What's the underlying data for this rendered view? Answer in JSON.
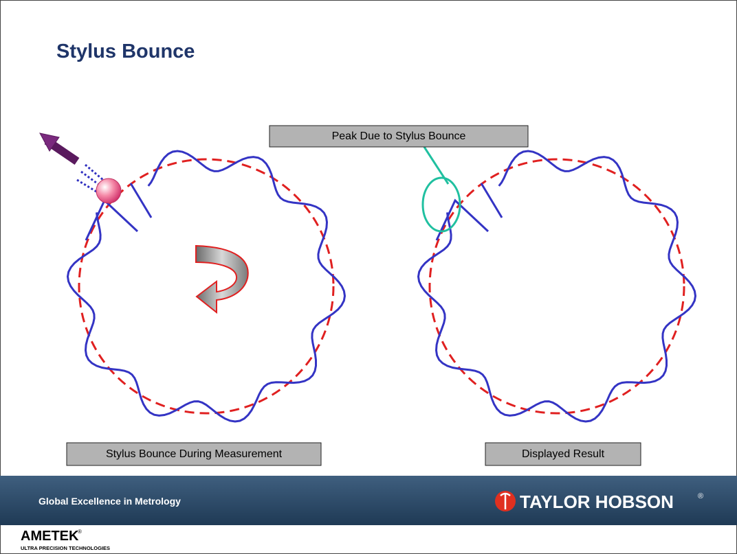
{
  "title": "Stylus Bounce",
  "callout": "Peak Due to Stylus Bounce",
  "captions": [
    "Stylus Bounce During Measurement",
    "Displayed Result"
  ],
  "footer": {
    "tagline": "Global Excellence in Metrology",
    "brand": "TAYLOR HOBSON",
    "brand_mark": "®"
  },
  "corporate": {
    "name": "AMETEK",
    "name_mark": "®",
    "division": "ULTRA PRECISION TECHNOLOGIES"
  }
}
